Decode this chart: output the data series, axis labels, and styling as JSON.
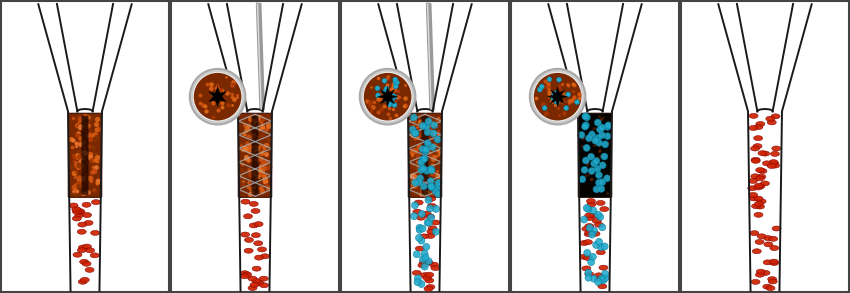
{
  "bg": "#ffffff",
  "wall_color": "#1a1a1a",
  "rbc_fill": "#cc2200",
  "rbc_edge": "#880000",
  "clot_fill": "#8b3a00",
  "clot_dark_fill": "#0a0500",
  "nano_fill": "#22aacc",
  "nano_edge": "#007799",
  "stent_color": "#aaaaaa",
  "cath_color": "#999999",
  "inset_ring": "#c0c0c0",
  "inset_ring2": "#e8e8e8",
  "panel_border": "#444444",
  "panels": [
    {
      "has_clot": true,
      "clot_dark": false,
      "has_stent": false,
      "has_catheter": false,
      "has_nano": false,
      "inset": false,
      "all_rbcs": false
    },
    {
      "has_clot": true,
      "clot_dark": false,
      "has_stent": true,
      "has_catheter": true,
      "has_nano": false,
      "inset": true,
      "inset_nano": false,
      "all_rbcs": false
    },
    {
      "has_clot": true,
      "clot_dark": false,
      "has_stent": true,
      "has_catheter": true,
      "has_nano": true,
      "inset": true,
      "inset_nano": true,
      "all_rbcs": false
    },
    {
      "has_clot": true,
      "clot_dark": true,
      "has_stent": false,
      "has_catheter": false,
      "has_nano": true,
      "inset": true,
      "inset_nano": true,
      "all_rbcs": false
    },
    {
      "has_clot": false,
      "clot_dark": false,
      "has_stent": false,
      "has_catheter": false,
      "has_nano": false,
      "inset": false,
      "all_rbcs": true
    }
  ]
}
